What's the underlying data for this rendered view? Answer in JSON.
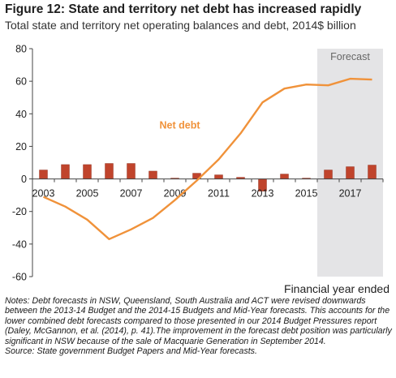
{
  "header": {
    "title": "Figure 12: State and territory net debt has increased rapidly",
    "subtitle": "Total state and territory net operating balances and debt, 2014$ billion"
  },
  "chart_data": {
    "type": "bar+line",
    "x": [
      2003,
      2004,
      2005,
      2006,
      2007,
      2008,
      2009,
      2010,
      2011,
      2012,
      2013,
      2014,
      2015,
      2016,
      2017,
      2018
    ],
    "series": [
      {
        "name": "",
        "type": "bar",
        "color": "#c0442c",
        "values": [
          5.5,
          8.8,
          8.8,
          9.5,
          9.5,
          4.8,
          0.5,
          3.5,
          2.5,
          1,
          -7.5,
          3,
          0.5,
          5.5,
          7.5,
          8.5
        ]
      },
      {
        "name": "Net debt",
        "type": "line",
        "color": "#f0923a",
        "values": [
          -11,
          -17,
          -25,
          -37,
          -31,
          -24,
          -13,
          -1,
          12,
          28,
          47,
          55.5,
          58,
          57.5,
          61.5,
          61
        ]
      }
    ],
    "forecast_from": 2016,
    "forecast_label": "Forecast",
    "series_label": "Net debt",
    "x_ticks": [
      "2003",
      "2005",
      "2007",
      "2009",
      "2011",
      "2013",
      "2015",
      "2017"
    ],
    "xlabel": "Financial year ended",
    "ylim": [
      -60,
      80
    ],
    "yticks": [
      80,
      60,
      40,
      20,
      0,
      -20,
      -40,
      -60
    ],
    "grid": false
  },
  "notes": {
    "line1": "Notes: Debt forecasts in NSW, Queensland, South Australia and ACT were revised downwards between the 2013-14 Budget and the 2014-15 Budgets and Mid-Year forecasts. This accounts for the lower combined debt forecasts compared to those presented in our 2014 Budget Pressures report (Daley, McGannon, et al. (2014), p. 41).The improvement in the forecast debt position was particularly significant in NSW because of the sale of Macquarie Generation in September 2014.",
    "line2": "Source: State government Budget Papers and Mid-Year forecasts."
  },
  "colors": {
    "bar": "#c0442c",
    "line": "#f0923a",
    "forecast_shade": "#e4e4e6",
    "axis": "#444444"
  }
}
